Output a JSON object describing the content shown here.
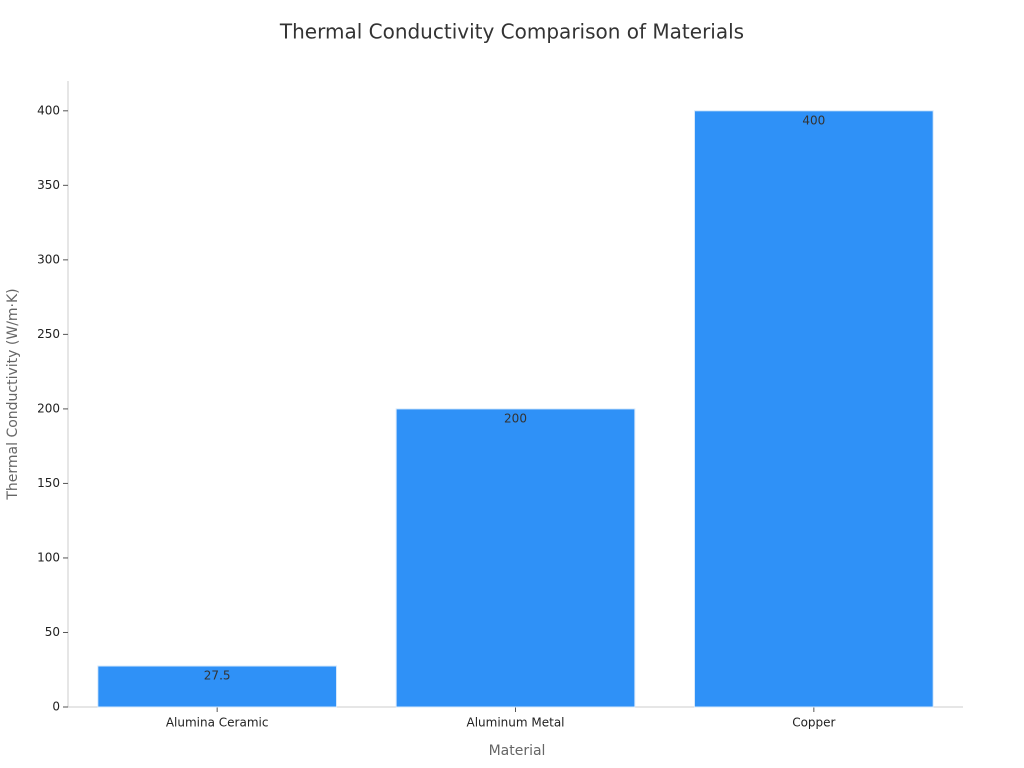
{
  "chart_data": {
    "type": "bar",
    "title": "Thermal Conductivity Comparison of Materials",
    "x_label": "Material",
    "y_label": "Thermal Conductivity (W/m·K)",
    "categories": [
      "Alumina Ceramic",
      "Aluminum Metal",
      "Copper"
    ],
    "values": [
      27.5,
      200,
      400
    ],
    "color": "#2f91f7",
    "ylim": [
      0,
      420
    ],
    "yticks": [
      0,
      50,
      100,
      150,
      200,
      250,
      300,
      350,
      400
    ],
    "grid": false
  }
}
